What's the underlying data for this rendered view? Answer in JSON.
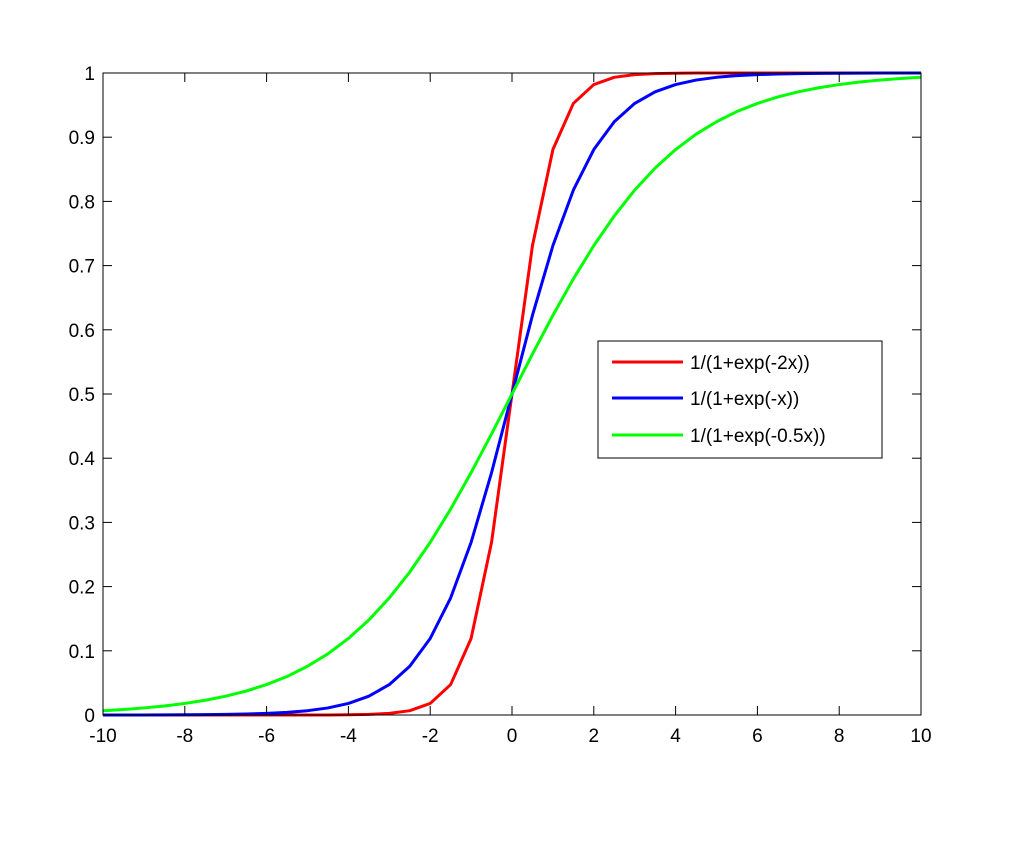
{
  "chart_data": {
    "type": "line",
    "title": "",
    "xlabel": "",
    "ylabel": "",
    "xlim": [
      -10,
      10
    ],
    "ylim": [
      0,
      1
    ],
    "xticks": [
      -10,
      -8,
      -6,
      -4,
      -2,
      0,
      2,
      4,
      6,
      8,
      10
    ],
    "yticks": [
      0,
      0.1,
      0.2,
      0.3,
      0.4,
      0.5,
      0.6,
      0.7,
      0.8,
      0.9,
      1
    ],
    "xtick_labels": [
      "-10",
      "-8",
      "-6",
      "-4",
      "-2",
      "0",
      "2",
      "4",
      "6",
      "8",
      "10"
    ],
    "ytick_labels": [
      "0",
      "0.1",
      "0.2",
      "0.3",
      "0.4",
      "0.5",
      "0.6",
      "0.7",
      "0.8",
      "0.9",
      "1"
    ],
    "grid": false,
    "legend": {
      "position": "right"
    },
    "x": [
      -10,
      -9.5,
      -9,
      -8.5,
      -8,
      -7.5,
      -7,
      -6.5,
      -6,
      -5.5,
      -5,
      -4.5,
      -4,
      -3.5,
      -3,
      -2.5,
      -2,
      -1.5,
      -1,
      -0.5,
      0,
      0.5,
      1,
      1.5,
      2,
      2.5,
      3,
      3.5,
      4,
      4.5,
      5,
      5.5,
      6,
      6.5,
      7,
      7.5,
      8,
      8.5,
      9,
      9.5,
      10
    ],
    "series": [
      {
        "name": "1/(1+exp(-2x))",
        "color": "#ff0000",
        "values": [
          0.0,
          0.0,
          0.0,
          0.0,
          0.0,
          0.0,
          0.0,
          0.0,
          0.0,
          0.0,
          0.0,
          0.0,
          0.0003,
          0.0009,
          0.0025,
          0.0067,
          0.018,
          0.0474,
          0.1192,
          0.2689,
          0.5,
          0.7311,
          0.8808,
          0.9526,
          0.982,
          0.9933,
          0.9975,
          0.9991,
          0.9997,
          0.9999,
          1.0,
          1.0,
          1.0,
          1.0,
          1.0,
          1.0,
          1.0,
          1.0,
          1.0,
          1.0,
          1.0
        ]
      },
      {
        "name": "1/(1+exp(-x))",
        "color": "#0000ff",
        "values": [
          0.0,
          0.0001,
          0.0001,
          0.0002,
          0.0003,
          0.0006,
          0.0009,
          0.0015,
          0.0025,
          0.0041,
          0.0067,
          0.011,
          0.018,
          0.0293,
          0.0474,
          0.0759,
          0.1192,
          0.1824,
          0.2689,
          0.3775,
          0.5,
          0.6225,
          0.7311,
          0.8176,
          0.8808,
          0.9241,
          0.9526,
          0.9707,
          0.982,
          0.989,
          0.9933,
          0.9959,
          0.9975,
          0.9985,
          0.9991,
          0.9994,
          0.9997,
          0.9998,
          0.9999,
          0.9999,
          1.0
        ]
      },
      {
        "name": "1/(1+exp(-0.5x))",
        "color": "#00ff00",
        "values": [
          0.0067,
          0.0086,
          0.011,
          0.0141,
          0.018,
          0.023,
          0.0293,
          0.0373,
          0.0474,
          0.06,
          0.0759,
          0.0953,
          0.1192,
          0.148,
          0.1824,
          0.2227,
          0.2689,
          0.3208,
          0.3775,
          0.4378,
          0.5,
          0.5622,
          0.6225,
          0.6792,
          0.7311,
          0.7773,
          0.8176,
          0.852,
          0.8808,
          0.9047,
          0.9241,
          0.94,
          0.9526,
          0.9627,
          0.9707,
          0.977,
          0.982,
          0.9859,
          0.989,
          0.9914,
          0.9933
        ]
      }
    ]
  }
}
